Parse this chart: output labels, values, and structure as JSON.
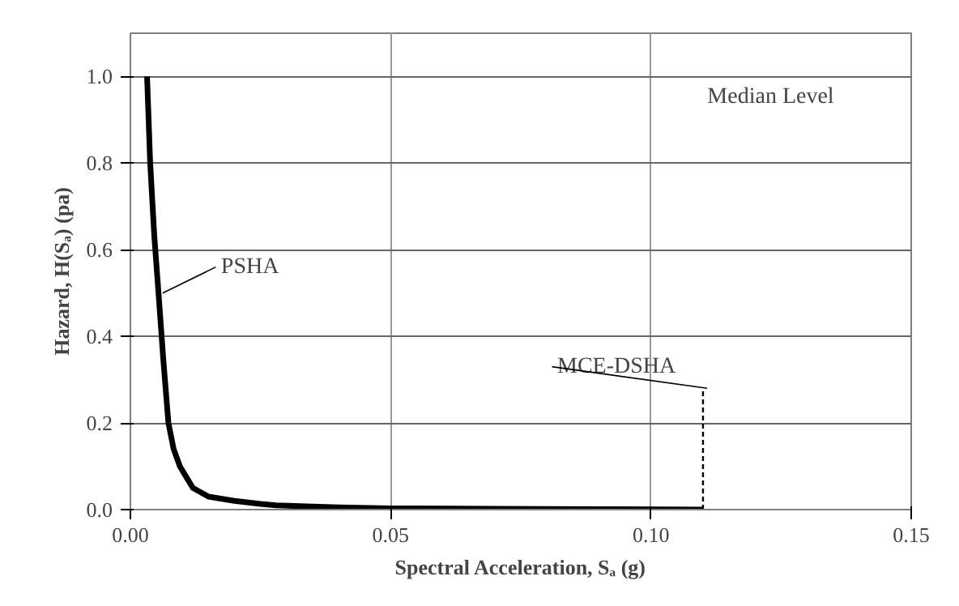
{
  "chart_data": {
    "type": "line",
    "xlabel": "Spectral Acceleration, Sₐ (g)",
    "ylabel": "Hazard, H(Sₐ) (pa)",
    "annotations": [
      "Median Level"
    ],
    "series": [
      {
        "name": "PSHA",
        "color": "#000000",
        "line_style": "solid",
        "x": [
          0.0032,
          0.0038,
          0.0046,
          0.0054,
          0.0063,
          0.0073,
          0.0083,
          0.0095,
          0.011,
          0.012,
          0.015,
          0.02,
          0.025,
          0.028,
          0.035,
          0.04,
          0.05,
          0.07,
          0.09,
          0.11
        ],
        "values": [
          1.0,
          0.8,
          0.63,
          0.5,
          0.35,
          0.2,
          0.14,
          0.1,
          0.07,
          0.05,
          0.03,
          0.02,
          0.013,
          0.01,
          0.007,
          0.005,
          0.003,
          0.002,
          0.001,
          0
        ]
      },
      {
        "name": "MCE-DSHA",
        "color": "#000000",
        "line_style": "dashed",
        "x": [
          0.11,
          0.11
        ],
        "values": [
          0,
          0.28
        ]
      }
    ],
    "xlim": [
      0,
      0.15
    ],
    "xticks": [
      {
        "value": 0,
        "label": "0.00"
      },
      0.05,
      {
        "value": 0.1,
        "label": "0.10"
      },
      0.15
    ],
    "ylim": [
      0,
      1.1
    ],
    "yticks": [
      {
        "value": 0,
        "label": "0.0"
      },
      0.2,
      0.4,
      0.6,
      0.8,
      {
        "value": 1,
        "label": "1.0"
      }
    ],
    "grid": true
  }
}
